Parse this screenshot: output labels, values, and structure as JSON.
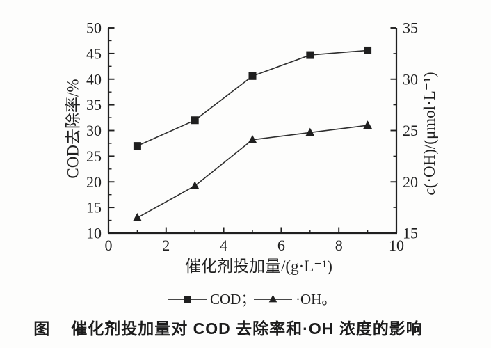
{
  "colors": {
    "ink": "#1f1f1f",
    "series_line": "#2e2e2e",
    "background": "#fdfdfc"
  },
  "chart_data": {
    "type": "line",
    "title": "",
    "x": [
      1,
      3,
      5,
      7,
      9
    ],
    "series": [
      {
        "name": "COD",
        "axis": "left",
        "marker": "square",
        "values": [
          27,
          32,
          40.6,
          44.7,
          45.6
        ]
      },
      {
        "name": "·OH",
        "axis": "right",
        "marker": "triangle",
        "values": [
          16.5,
          19.6,
          24.1,
          24.8,
          25.5
        ]
      }
    ],
    "x_axis": {
      "label": "催化剂投加量/(g·L⁻¹)",
      "min": 0,
      "max": 10,
      "major_ticks": [
        0,
        2,
        4,
        6,
        8,
        10
      ],
      "minor_ticks": [
        1,
        3,
        5,
        7,
        9
      ]
    },
    "left_axis": {
      "label": "COD去除率/%",
      "min": 10,
      "max": 50,
      "major_ticks": [
        10,
        15,
        20,
        25,
        30,
        35,
        40,
        45,
        50
      ],
      "minor_step": 2.5
    },
    "right_axis": {
      "label_prefix_italic": "c",
      "label": "(·OH)/(μmol·L⁻¹)",
      "min": 15,
      "max": 35,
      "major_ticks": [
        15,
        20,
        25,
        30,
        35
      ],
      "minor_step": 2.5
    },
    "legend": {
      "position": "bottom",
      "items": [
        {
          "marker": "square",
          "label": "COD；"
        },
        {
          "marker": "triangle",
          "label": "·OH。"
        }
      ]
    },
    "grid": false
  },
  "caption": {
    "prefix": "图",
    "text": "催化剂投加量对 COD 去除率和·OH 浓度的影响"
  }
}
